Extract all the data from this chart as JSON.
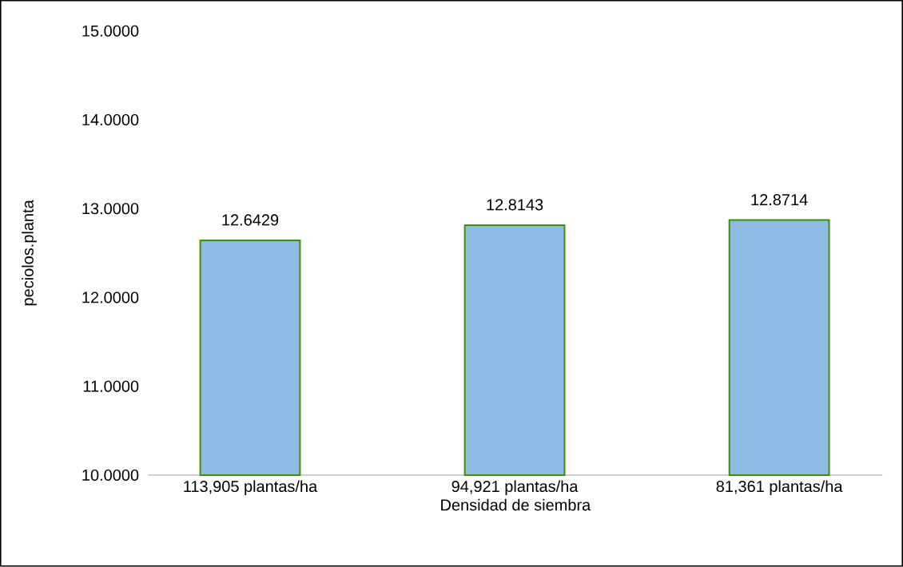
{
  "chart_data": {
    "type": "bar",
    "xlabel": "Densidad de siembra",
    "ylabel": "peciolos.planta",
    "categories": [
      "113,905 plantas/ha",
      "94,921 plantas/ha",
      "81,361 plantas/ha"
    ],
    "values": [
      12.6429,
      12.8143,
      12.8714
    ],
    "color": "#8fbae3",
    "data_labels": true,
    "ylim": [
      10,
      15
    ],
    "yticks": [
      {
        "value": 10,
        "label": "10.0000"
      },
      {
        "value": 11,
        "label": "11.0000"
      },
      {
        "value": 12,
        "label": "12.0000"
      },
      {
        "value": 13,
        "label": "13.0000"
      },
      {
        "value": 14,
        "label": "14.0000"
      },
      {
        "value": 15,
        "label": "15.0000"
      }
    ],
    "grid": false
  }
}
